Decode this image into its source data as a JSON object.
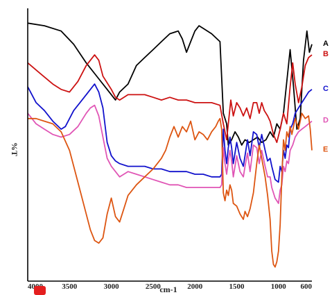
{
  "chart_data": {
    "type": "line",
    "title": "",
    "xlabel": "cm-1",
    "ylabel": "%T",
    "x_reversed": true,
    "xlim": [
      4000,
      600
    ],
    "x_ticks": [
      {
        "v": 4000,
        "label": "4000"
      },
      {
        "v": 3500,
        "label": "3500"
      },
      {
        "v": 3000,
        "label": "3000"
      },
      {
        "v": 2500,
        "label": "2500"
      },
      {
        "v": 2000,
        "label": "2000"
      },
      {
        "v": 1500,
        "label": "1500"
      },
      {
        "v": 1000,
        "label": "1000"
      },
      {
        "v": 600,
        "label": "600"
      }
    ],
    "ylim": [
      0,
      100
    ],
    "grid": false,
    "legend": "series labels at right end of each curve",
    "series": [
      {
        "name": "A",
        "color": "#000000",
        "points": [
          [
            4000,
            96
          ],
          [
            3800,
            95
          ],
          [
            3600,
            93
          ],
          [
            3450,
            88
          ],
          [
            3300,
            81
          ],
          [
            3150,
            75
          ],
          [
            3050,
            71
          ],
          [
            2950,
            67
          ],
          [
            2900,
            70
          ],
          [
            2800,
            73
          ],
          [
            2700,
            80
          ],
          [
            2600,
            83
          ],
          [
            2500,
            86
          ],
          [
            2400,
            89
          ],
          [
            2300,
            92
          ],
          [
            2200,
            93
          ],
          [
            2150,
            90
          ],
          [
            2100,
            85
          ],
          [
            2050,
            89
          ],
          [
            2000,
            93
          ],
          [
            1950,
            95
          ],
          [
            1900,
            94
          ],
          [
            1800,
            92
          ],
          [
            1700,
            89
          ],
          [
            1660,
            62
          ],
          [
            1620,
            58
          ],
          [
            1600,
            50
          ],
          [
            1560,
            52
          ],
          [
            1520,
            55
          ],
          [
            1480,
            53
          ],
          [
            1440,
            50
          ],
          [
            1400,
            52
          ],
          [
            1350,
            51
          ],
          [
            1300,
            52
          ],
          [
            1250,
            53
          ],
          [
            1200,
            51
          ],
          [
            1150,
            52
          ],
          [
            1100,
            55
          ],
          [
            1060,
            53
          ],
          [
            1020,
            58
          ],
          [
            980,
            56
          ],
          [
            940,
            62
          ],
          [
            900,
            74
          ],
          [
            860,
            86
          ],
          [
            820,
            72
          ],
          [
            780,
            56
          ],
          [
            740,
            60
          ],
          [
            700,
            82
          ],
          [
            660,
            93
          ],
          [
            630,
            85
          ],
          [
            600,
            88
          ]
        ]
      },
      {
        "name": "B",
        "color": "#cc1111",
        "points": [
          [
            4000,
            81
          ],
          [
            3850,
            77
          ],
          [
            3700,
            73
          ],
          [
            3600,
            71
          ],
          [
            3500,
            70
          ],
          [
            3400,
            74
          ],
          [
            3300,
            80
          ],
          [
            3200,
            84
          ],
          [
            3150,
            82
          ],
          [
            3100,
            76
          ],
          [
            3000,
            71
          ],
          [
            2950,
            68
          ],
          [
            2900,
            67
          ],
          [
            2850,
            68
          ],
          [
            2800,
            69
          ],
          [
            2700,
            69
          ],
          [
            2600,
            69
          ],
          [
            2500,
            68
          ],
          [
            2400,
            67
          ],
          [
            2300,
            68
          ],
          [
            2200,
            67
          ],
          [
            2100,
            67
          ],
          [
            2000,
            66
          ],
          [
            1900,
            66
          ],
          [
            1800,
            66
          ],
          [
            1700,
            65
          ],
          [
            1660,
            58
          ],
          [
            1620,
            52
          ],
          [
            1600,
            58
          ],
          [
            1570,
            67
          ],
          [
            1540,
            61
          ],
          [
            1500,
            66
          ],
          [
            1460,
            64
          ],
          [
            1420,
            61
          ],
          [
            1380,
            64
          ],
          [
            1340,
            60
          ],
          [
            1300,
            66
          ],
          [
            1260,
            66
          ],
          [
            1230,
            62
          ],
          [
            1200,
            66
          ],
          [
            1170,
            63
          ],
          [
            1130,
            61
          ],
          [
            1100,
            59
          ],
          [
            1060,
            54
          ],
          [
            1020,
            51
          ],
          [
            980,
            56
          ],
          [
            940,
            62
          ],
          [
            900,
            58
          ],
          [
            860,
            72
          ],
          [
            830,
            81
          ],
          [
            800,
            73
          ],
          [
            760,
            66
          ],
          [
            720,
            72
          ],
          [
            680,
            80
          ],
          [
            640,
            83
          ],
          [
            600,
            84
          ]
        ]
      },
      {
        "name": "C",
        "color": "#1111cc",
        "points": [
          [
            4000,
            72
          ],
          [
            3900,
            66
          ],
          [
            3800,
            63
          ],
          [
            3700,
            59
          ],
          [
            3600,
            56
          ],
          [
            3550,
            57
          ],
          [
            3450,
            63
          ],
          [
            3350,
            67
          ],
          [
            3250,
            71
          ],
          [
            3200,
            73
          ],
          [
            3150,
            70
          ],
          [
            3100,
            64
          ],
          [
            3050,
            51
          ],
          [
            3000,
            46
          ],
          [
            2950,
            44
          ],
          [
            2900,
            43
          ],
          [
            2800,
            42
          ],
          [
            2700,
            42
          ],
          [
            2600,
            42
          ],
          [
            2500,
            41
          ],
          [
            2400,
            41
          ],
          [
            2300,
            40
          ],
          [
            2200,
            40
          ],
          [
            2100,
            40
          ],
          [
            2000,
            39
          ],
          [
            1900,
            39
          ],
          [
            1800,
            38
          ],
          [
            1750,
            38
          ],
          [
            1720,
            38
          ],
          [
            1700,
            38
          ],
          [
            1680,
            39
          ],
          [
            1660,
            56
          ],
          [
            1640,
            48
          ],
          [
            1620,
            43
          ],
          [
            1600,
            49
          ],
          [
            1580,
            53
          ],
          [
            1560,
            49
          ],
          [
            1540,
            43
          ],
          [
            1500,
            51
          ],
          [
            1460,
            45
          ],
          [
            1420,
            42
          ],
          [
            1400,
            46
          ],
          [
            1370,
            52
          ],
          [
            1340,
            46
          ],
          [
            1300,
            55
          ],
          [
            1260,
            54
          ],
          [
            1230,
            49
          ],
          [
            1200,
            54
          ],
          [
            1160,
            48
          ],
          [
            1130,
            44
          ],
          [
            1100,
            45
          ],
          [
            1080,
            42
          ],
          [
            1040,
            37
          ],
          [
            1000,
            36
          ],
          [
            980,
            42
          ],
          [
            960,
            40
          ],
          [
            940,
            48
          ],
          [
            920,
            45
          ],
          [
            900,
            50
          ],
          [
            880,
            49
          ],
          [
            860,
            56
          ],
          [
            830,
            58
          ],
          [
            800,
            62
          ],
          [
            760,
            64
          ],
          [
            720,
            66
          ],
          [
            680,
            68
          ],
          [
            640,
            70
          ],
          [
            600,
            71
          ]
        ]
      },
      {
        "name": "D",
        "color": "#e055b5",
        "points": [
          [
            4000,
            62
          ],
          [
            3900,
            58
          ],
          [
            3800,
            56
          ],
          [
            3700,
            54
          ],
          [
            3600,
            53
          ],
          [
            3500,
            54
          ],
          [
            3400,
            57
          ],
          [
            3300,
            62
          ],
          [
            3250,
            64
          ],
          [
            3200,
            65
          ],
          [
            3150,
            61
          ],
          [
            3100,
            53
          ],
          [
            3050,
            45
          ],
          [
            3000,
            42
          ],
          [
            2950,
            40
          ],
          [
            2900,
            38
          ],
          [
            2850,
            39
          ],
          [
            2800,
            40
          ],
          [
            2700,
            39
          ],
          [
            2600,
            38
          ],
          [
            2500,
            37
          ],
          [
            2400,
            36
          ],
          [
            2300,
            35
          ],
          [
            2200,
            35
          ],
          [
            2100,
            34
          ],
          [
            2000,
            34
          ],
          [
            1900,
            34
          ],
          [
            1800,
            34
          ],
          [
            1700,
            34
          ],
          [
            1680,
            35
          ],
          [
            1660,
            49
          ],
          [
            1640,
            43
          ],
          [
            1620,
            39
          ],
          [
            1600,
            44
          ],
          [
            1580,
            48
          ],
          [
            1560,
            44
          ],
          [
            1540,
            38
          ],
          [
            1500,
            46
          ],
          [
            1460,
            40
          ],
          [
            1420,
            38
          ],
          [
            1400,
            42
          ],
          [
            1370,
            47
          ],
          [
            1340,
            40
          ],
          [
            1300,
            50
          ],
          [
            1260,
            49
          ],
          [
            1230,
            43
          ],
          [
            1200,
            48
          ],
          [
            1160,
            42
          ],
          [
            1130,
            38
          ],
          [
            1100,
            38
          ],
          [
            1080,
            34
          ],
          [
            1040,
            30
          ],
          [
            1000,
            28
          ],
          [
            980,
            33
          ],
          [
            960,
            35
          ],
          [
            940,
            42
          ],
          [
            920,
            40
          ],
          [
            900,
            44
          ],
          [
            880,
            43
          ],
          [
            860,
            48
          ],
          [
            830,
            50
          ],
          [
            800,
            53
          ],
          [
            760,
            55
          ],
          [
            720,
            56
          ],
          [
            680,
            57
          ],
          [
            640,
            58
          ],
          [
            600,
            59
          ]
        ]
      },
      {
        "name": "E",
        "color": "#dd5511",
        "points": [
          [
            4000,
            60
          ],
          [
            3900,
            60
          ],
          [
            3800,
            59
          ],
          [
            3700,
            58
          ],
          [
            3600,
            55
          ],
          [
            3500,
            48
          ],
          [
            3400,
            36
          ],
          [
            3300,
            24
          ],
          [
            3250,
            18
          ],
          [
            3200,
            14
          ],
          [
            3150,
            13
          ],
          [
            3100,
            15
          ],
          [
            3050,
            24
          ],
          [
            3000,
            30
          ],
          [
            2950,
            23
          ],
          [
            2900,
            21
          ],
          [
            2850,
            26
          ],
          [
            2800,
            31
          ],
          [
            2700,
            35
          ],
          [
            2600,
            38
          ],
          [
            2500,
            41
          ],
          [
            2400,
            45
          ],
          [
            2350,
            48
          ],
          [
            2300,
            53
          ],
          [
            2250,
            57
          ],
          [
            2200,
            53
          ],
          [
            2150,
            57
          ],
          [
            2100,
            55
          ],
          [
            2050,
            59
          ],
          [
            2000,
            52
          ],
          [
            1950,
            55
          ],
          [
            1900,
            54
          ],
          [
            1850,
            52
          ],
          [
            1800,
            55
          ],
          [
            1750,
            57
          ],
          [
            1720,
            59
          ],
          [
            1700,
            60
          ],
          [
            1680,
            56
          ],
          [
            1660,
            32
          ],
          [
            1640,
            29
          ],
          [
            1620,
            33
          ],
          [
            1600,
            31
          ],
          [
            1580,
            35
          ],
          [
            1560,
            33
          ],
          [
            1540,
            28
          ],
          [
            1500,
            27
          ],
          [
            1460,
            24
          ],
          [
            1420,
            22
          ],
          [
            1400,
            25
          ],
          [
            1370,
            23
          ],
          [
            1340,
            26
          ],
          [
            1300,
            32
          ],
          [
            1260,
            43
          ],
          [
            1230,
            50
          ],
          [
            1200,
            45
          ],
          [
            1160,
            38
          ],
          [
            1130,
            31
          ],
          [
            1100,
            22
          ],
          [
            1080,
            10
          ],
          [
            1060,
            5
          ],
          [
            1040,
            4
          ],
          [
            1020,
            6
          ],
          [
            1000,
            10
          ],
          [
            980,
            20
          ],
          [
            960,
            38
          ],
          [
            940,
            52
          ],
          [
            920,
            48
          ],
          [
            900,
            55
          ],
          [
            880,
            53
          ],
          [
            860,
            57
          ],
          [
            840,
            54
          ],
          [
            800,
            60
          ],
          [
            760,
            56
          ],
          [
            720,
            62
          ],
          [
            680,
            60
          ],
          [
            640,
            61
          ],
          [
            620,
            56
          ],
          [
            600,
            48
          ]
        ]
      }
    ]
  }
}
